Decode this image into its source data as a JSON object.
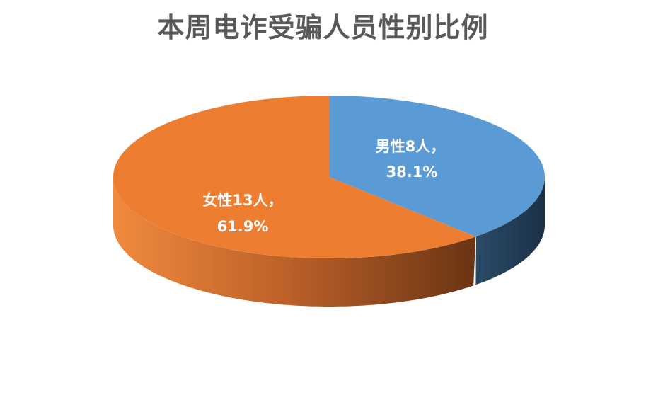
{
  "chart_data": {
    "type": "pie",
    "style": "3d",
    "title": "本周电诈受骗人员性别比例",
    "slices": [
      {
        "name": "男性",
        "count": 8,
        "percent": 38.1,
        "label_line1": "男性8人，",
        "label_line2": "38.1%",
        "color": "#5B9BD5",
        "side_color": "#223E58"
      },
      {
        "name": "女性",
        "count": 13,
        "percent": 61.9,
        "label_line1": "女性13人，",
        "label_line2": "61.9%",
        "color": "#ED7D31",
        "side_color": "#8E4A1C"
      }
    ],
    "legend": "none"
  }
}
